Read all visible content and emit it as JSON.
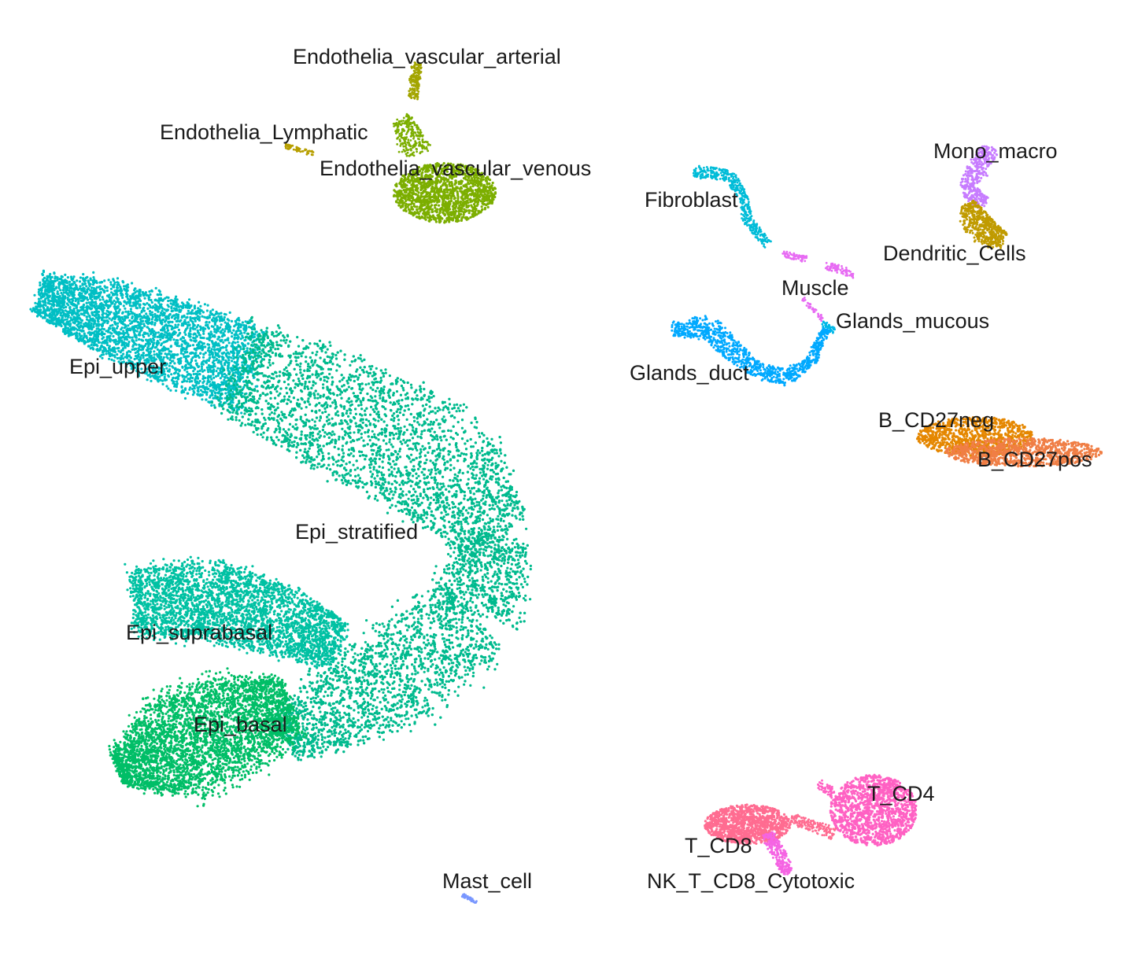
{
  "chart_data": {
    "type": "scatter",
    "title": "",
    "xlabel": "",
    "ylabel": "",
    "axes_visible": false,
    "grid": false,
    "legend": "none",
    "clusters": [
      {
        "label": "Endothelia_vascular_arterial",
        "color": "#A3A500",
        "center": [
          525,
          97
        ]
      },
      {
        "label": "Endothelia_Lymphatic",
        "color": "#B79F00",
        "center": [
          380,
          190
        ]
      },
      {
        "label": "Endothelia_vascular_venous",
        "color": "#7CAE00",
        "center": [
          560,
          228
        ]
      },
      {
        "label": "Mono_macro",
        "color": "#C77CFF",
        "center": [
          1245,
          215
        ]
      },
      {
        "label": "Dendritic_Cells",
        "color": "#C09B00",
        "center": [
          1250,
          290
        ]
      },
      {
        "label": "Fibroblast",
        "color": "#00BCD8",
        "center": [
          935,
          255
        ]
      },
      {
        "label": "Muscle",
        "color": "#E76BF3",
        "center": [
          1040,
          335
        ]
      },
      {
        "label": "Glands_mucous",
        "color": "#00B8E7",
        "center": [
          1045,
          412
        ]
      },
      {
        "label": "Glands_duct",
        "color": "#00A9FF",
        "center": [
          940,
          450
        ]
      },
      {
        "label": "B_CD27neg",
        "color": "#E58700",
        "center": [
          1230,
          552
        ]
      },
      {
        "label": "B_CD27pos",
        "color": "#F07E45",
        "center": [
          1290,
          568
        ]
      },
      {
        "label": "Epi_upper",
        "color": "#00BFC4",
        "center": [
          170,
          420
        ]
      },
      {
        "label": "Epi_stratified",
        "color": "#00BA8E",
        "center": [
          470,
          640
        ]
      },
      {
        "label": "Epi_suprabasal",
        "color": "#00C1A3",
        "center": [
          270,
          790
        ]
      },
      {
        "label": "Epi_basal",
        "color": "#00BE67",
        "center": [
          285,
          940
        ]
      },
      {
        "label": "T_CD4",
        "color": "#FF61C3",
        "center": [
          1110,
          1030
        ]
      },
      {
        "label": "T_CD8",
        "color": "#FF6C91",
        "center": [
          955,
          1050
        ]
      },
      {
        "label": "NK_T_CD8_Cytotoxic",
        "color": "#F564E3",
        "center": [
          995,
          1100
        ]
      },
      {
        "label": "Mast_cell",
        "color": "#7997FF",
        "center": [
          596,
          1143
        ]
      }
    ]
  },
  "labels": {
    "endo_arterial": "Endothelia_vascular_arterial",
    "endo_lymphatic": "Endothelia_Lymphatic",
    "endo_venous": "Endothelia_vascular_venous",
    "mono_macro": "Mono_macro",
    "dendritic": "Dendritic_Cells",
    "fibroblast": "Fibroblast",
    "muscle": "Muscle",
    "glands_mucous": "Glands_mucous",
    "glands_duct": "Glands_duct",
    "b_neg": "B_CD27neg",
    "b_pos": "B_CD27pos",
    "epi_upper": "Epi_upper",
    "epi_stratified": "Epi_stratified",
    "epi_suprabasal": "Epi_suprabasal",
    "epi_basal": "Epi_basal",
    "t_cd4": "T_CD4",
    "t_cd8": "T_CD8",
    "nk_t": "NK_T_CD8_Cytotoxic",
    "mast": "Mast_cell"
  }
}
